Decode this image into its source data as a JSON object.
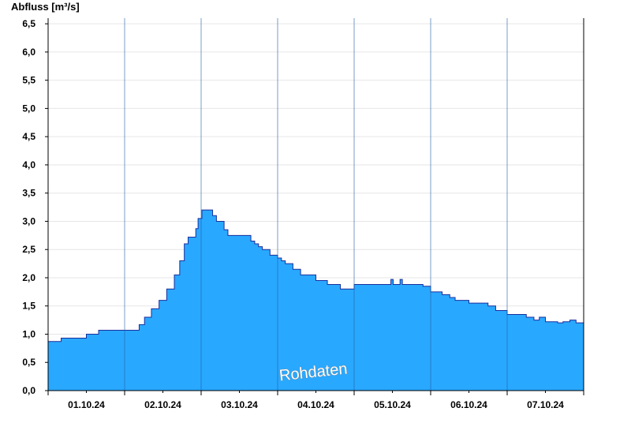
{
  "chart_data": {
    "type": "area",
    "title": "",
    "ylabel": "Abfluss [m³/s]",
    "xlabel": "",
    "ylim": [
      0,
      6.6
    ],
    "xlim": [
      0,
      7
    ],
    "yticks": [
      {
        "value": 0,
        "label": "0,0"
      },
      {
        "value": 0.5,
        "label": "0,5"
      },
      {
        "value": 1,
        "label": "1,0"
      },
      {
        "value": 1.5,
        "label": "1,5"
      },
      {
        "value": 2,
        "label": "2,0"
      },
      {
        "value": 2.5,
        "label": "2,5"
      },
      {
        "value": 3,
        "label": "3,0"
      },
      {
        "value": 3.5,
        "label": "3,5"
      },
      {
        "value": 4,
        "label": "4,0"
      },
      {
        "value": 4.5,
        "label": "4,5"
      },
      {
        "value": 5,
        "label": "5,0"
      },
      {
        "value": 5.5,
        "label": "5,5"
      },
      {
        "value": 6,
        "label": "6,0"
      },
      {
        "value": 6.5,
        "label": "6,5"
      }
    ],
    "day_labels": [
      "01.10.24",
      "02.10.24",
      "03.10.24",
      "04.10.24",
      "05.10.24",
      "06.10.24",
      "07.10.24"
    ],
    "grid": true,
    "watermark": "Rohdaten",
    "colors": {
      "fill": "#29a8ff",
      "line": "#1a2f9c",
      "grid": "#e6e6e6",
      "axis": "#000000"
    },
    "series": [
      {
        "name": "",
        "x": [
          0,
          0.17,
          0.44,
          0.5,
          0.66,
          0.9,
          1.19,
          1.26,
          1.35,
          1.45,
          1.55,
          1.65,
          1.72,
          1.78,
          1.83,
          1.87,
          1.9,
          1.93,
          1.96,
          2.01,
          2.08,
          2.15,
          2.2,
          2.3,
          2.35,
          2.5,
          2.65,
          2.7,
          2.75,
          2.8,
          2.9,
          3.0,
          3.05,
          3.1,
          3.2,
          3.3,
          3.5,
          3.65,
          3.82,
          4.0,
          4.35,
          4.45,
          4.48,
          4.51,
          4.56,
          4.6,
          4.63,
          4.8,
          4.9,
          5.0,
          5.15,
          5.25,
          5.32,
          5.5,
          5.75,
          5.85,
          6.0,
          6.25,
          6.35,
          6.42,
          6.5,
          6.6,
          6.66,
          6.73,
          6.82,
          6.9,
          7.0
        ],
        "y": [
          0.87,
          0.93,
          0.93,
          1.0,
          1.07,
          1.07,
          1.17,
          1.3,
          1.45,
          1.6,
          1.8,
          2.05,
          2.3,
          2.6,
          2.72,
          2.72,
          2.72,
          2.87,
          3.05,
          3.2,
          3.2,
          3.1,
          3.0,
          2.85,
          2.75,
          2.75,
          2.65,
          2.6,
          2.55,
          2.5,
          2.4,
          2.35,
          2.3,
          2.25,
          2.15,
          2.05,
          1.95,
          1.88,
          1.8,
          1.88,
          1.88,
          1.88,
          1.97,
          1.88,
          1.88,
          1.97,
          1.88,
          1.88,
          1.85,
          1.75,
          1.7,
          1.65,
          1.6,
          1.55,
          1.5,
          1.42,
          1.35,
          1.3,
          1.25,
          1.3,
          1.22,
          1.22,
          1.2,
          1.22,
          1.25,
          1.2,
          1.25
        ]
      }
    ]
  }
}
